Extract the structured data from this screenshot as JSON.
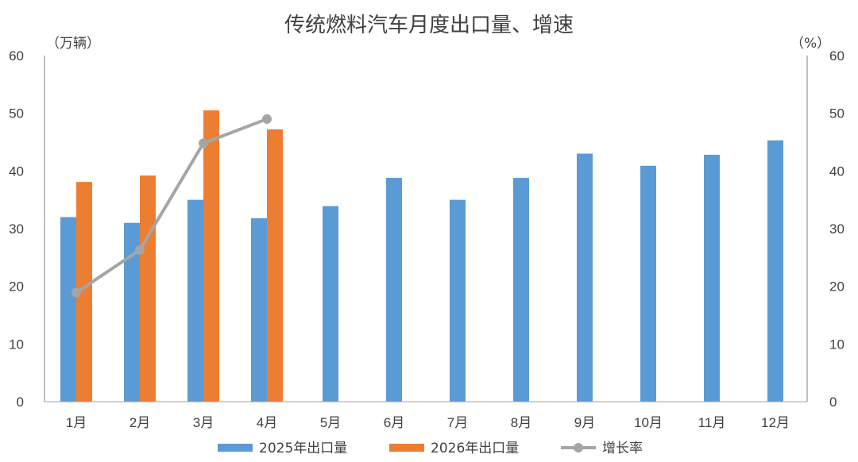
{
  "chart_data": {
    "type": "bar",
    "title": "传统燃料汽车月度出口量、增速",
    "categories": [
      "1月",
      "2月",
      "3月",
      "4月",
      "5月",
      "6月",
      "7月",
      "8月",
      "9月",
      "10月",
      "11月",
      "12月"
    ],
    "series": [
      {
        "name": "2025年出口量",
        "type": "bar",
        "axis": "left",
        "color": "#5B9BD5",
        "values": [
          32.0,
          31.0,
          35.0,
          31.8,
          33.9,
          38.8,
          35.0,
          38.8,
          43.0,
          40.9,
          42.8,
          45.3
        ]
      },
      {
        "name": "2026年出口量",
        "type": "bar",
        "axis": "left",
        "color": "#ED7D31",
        "values": [
          38.1,
          39.2,
          50.5,
          47.2,
          null,
          null,
          null,
          null,
          null,
          null,
          null,
          null
        ]
      },
      {
        "name": "增长率",
        "type": "line",
        "axis": "right",
        "color": "#A5A5A5",
        "values": [
          18.9,
          26.3,
          44.8,
          49.0,
          null,
          null,
          null,
          null,
          null,
          null,
          null,
          null
        ]
      }
    ],
    "y_left": {
      "label": "（万辆）",
      "ylim": [
        0,
        60
      ],
      "ticks": [
        "0",
        "10",
        "20",
        "30",
        "40",
        "50",
        "60"
      ]
    },
    "y_right": {
      "label": "（%）",
      "ylim": [
        0,
        60
      ],
      "ticks": [
        "0",
        "10",
        "20",
        "30",
        "40",
        "50",
        "60"
      ]
    },
    "grid": false,
    "legend_position": "bottom"
  }
}
